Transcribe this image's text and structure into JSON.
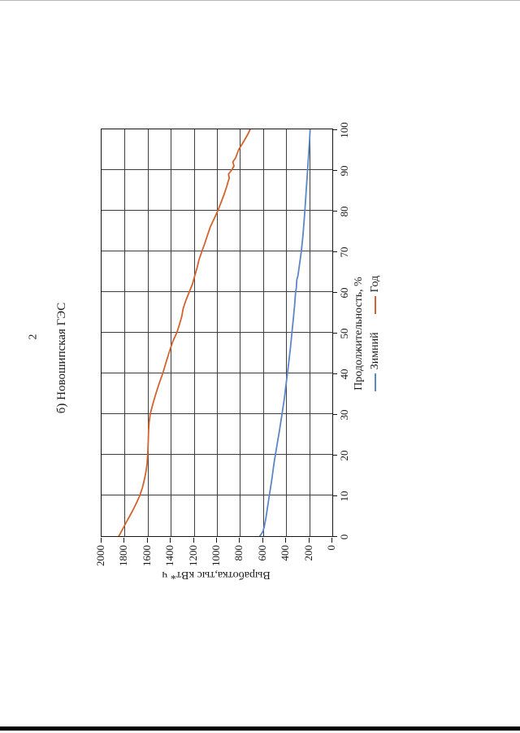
{
  "page": {
    "number": "2"
  },
  "chart": {
    "title": "б) Новошипская ГЭС",
    "x_axis": {
      "title": "Продолжительность, %"
    },
    "y_axis": {
      "title": "Выработка,тыс кВт* ч"
    },
    "legend": {
      "items": [
        "Зимний",
        "Год"
      ]
    },
    "colors": {
      "winter": "#5b87c7",
      "year": "#d2622e",
      "grid": "#3d3d3d",
      "axis": "#161616"
    }
  },
  "chart_data": {
    "type": "line",
    "title": "б) Новошипская ГЭС",
    "xlabel": "Продолжительность, %",
    "ylabel": "Выработка,тыс кВт* ч",
    "xlim": [
      0,
      100
    ],
    "ylim": [
      0,
      2000
    ],
    "x_ticks": [
      0,
      10,
      20,
      30,
      40,
      50,
      60,
      70,
      80,
      90,
      100
    ],
    "y_ticks": [
      2000,
      1800,
      1600,
      1400,
      1200,
      1000,
      800,
      600,
      400,
      200,
      0
    ],
    "grid": true,
    "legend_position": "bottom",
    "series": [
      {
        "name": "Зимний",
        "color": "#5b87c7",
        "x": [
          0,
          1,
          2,
          4,
          7,
          10,
          14,
          18,
          22,
          26,
          30,
          34,
          38,
          42,
          46,
          50,
          54,
          57,
          60,
          61,
          63,
          64,
          66,
          70,
          74,
          78,
          82,
          86,
          90,
          94,
          97,
          100
        ],
        "y": [
          628,
          604,
          592,
          578,
          562,
          546,
          524,
          505,
          482,
          458,
          436,
          415,
          398,
          380,
          364,
          350,
          336,
          326,
          318,
          312,
          308,
          298,
          288,
          268,
          254,
          243,
          233,
          224,
          214,
          205,
          198,
          192
        ]
      },
      {
        "name": "Год",
        "color": "#d2622e",
        "x": [
          0,
          2,
          4,
          6,
          8,
          10,
          12,
          14,
          16,
          18,
          20,
          23,
          26,
          28,
          30,
          32,
          34,
          36,
          38,
          40,
          43,
          46,
          48,
          50,
          52,
          54,
          56,
          58,
          60,
          62,
          64,
          66,
          68,
          70,
          72,
          74,
          76,
          78,
          80,
          82,
          84,
          86,
          87,
          88,
          89,
          90,
          91,
          92,
          93,
          95,
          97,
          99,
          100
        ],
        "y": [
          1850,
          1812,
          1775,
          1735,
          1700,
          1668,
          1645,
          1628,
          1614,
          1605,
          1600,
          1596,
          1592,
          1588,
          1578,
          1560,
          1540,
          1518,
          1495,
          1470,
          1438,
          1405,
          1380,
          1348,
          1325,
          1305,
          1292,
          1268,
          1240,
          1212,
          1192,
          1172,
          1155,
          1130,
          1105,
          1082,
          1058,
          1025,
          992,
          965,
          938,
          915,
          905,
          893,
          900,
          872,
          852,
          862,
          838,
          812,
          768,
          728,
          712
        ]
      }
    ]
  }
}
